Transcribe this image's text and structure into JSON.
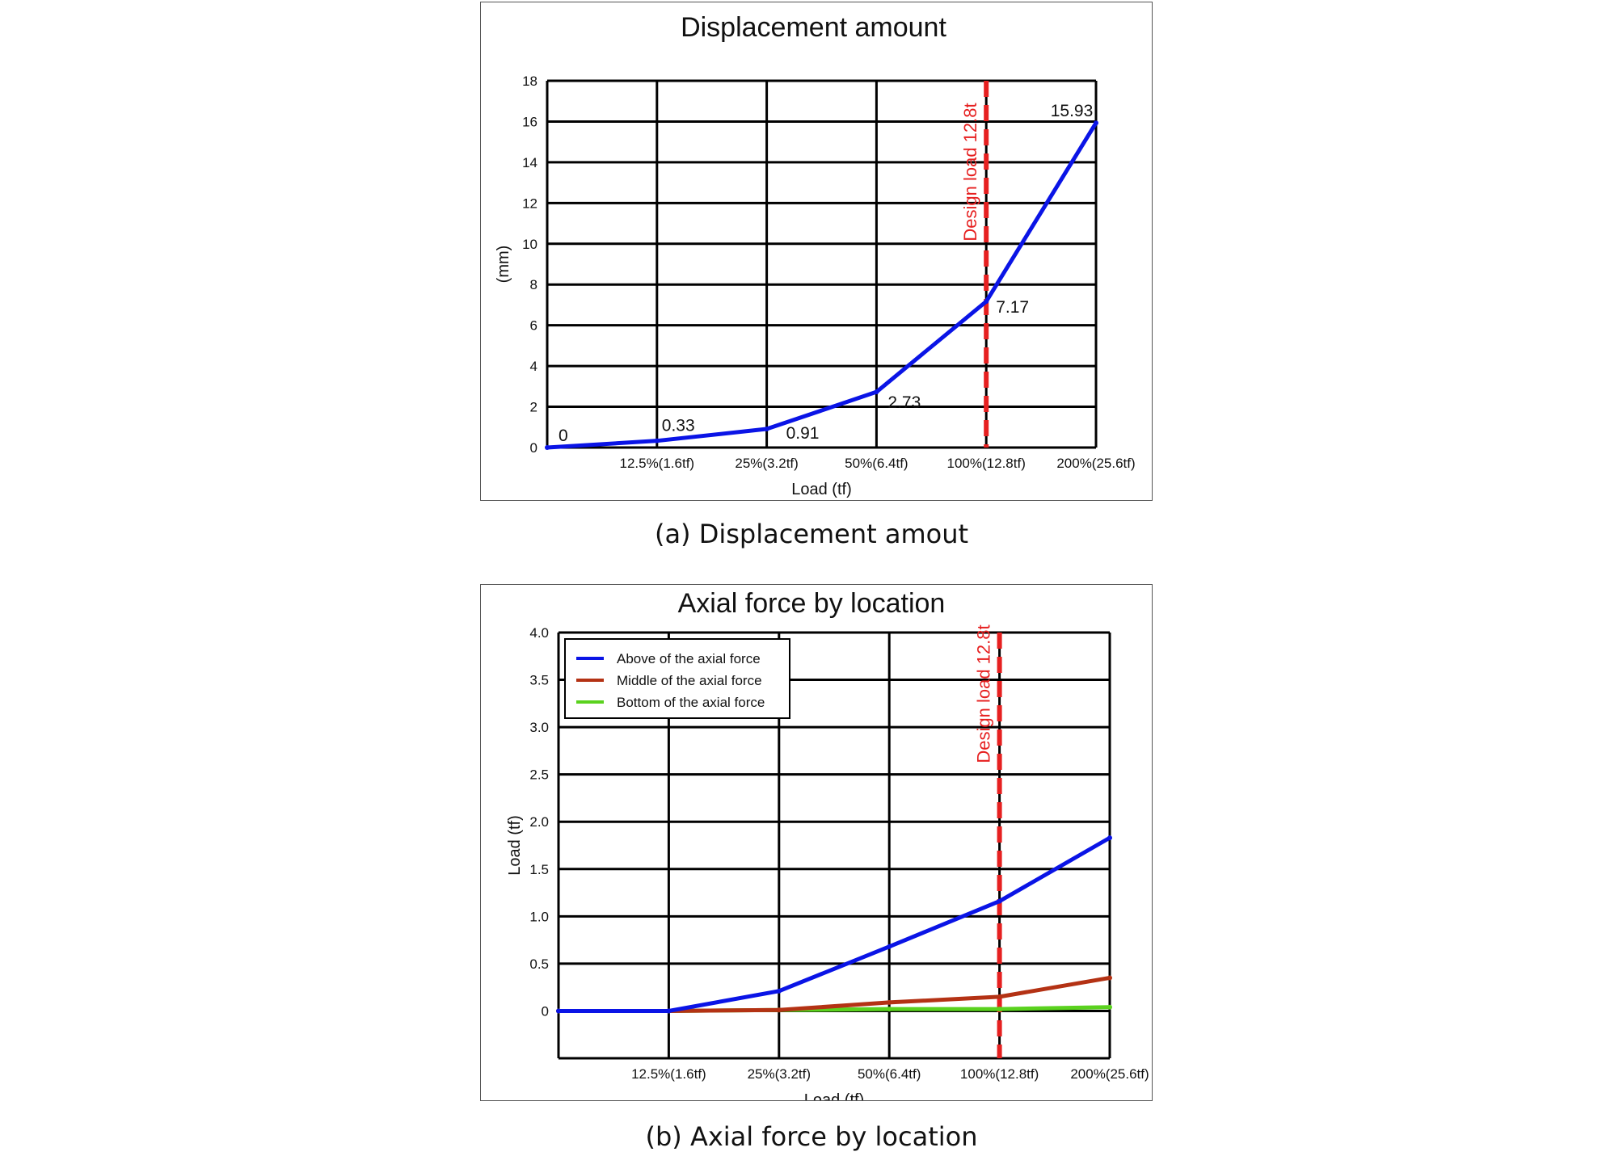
{
  "chart_data": [
    {
      "type": "line",
      "title": "Displacement amount",
      "xlabel": "Load (tf)",
      "ylabel": "(mm)",
      "categories": [
        "",
        "12.5%(1.6tf)",
        "25%(3.2tf)",
        "50%(6.4tf)",
        "100%(12.8tf)",
        "200%(25.6tf)"
      ],
      "ylim": [
        0,
        18
      ],
      "yticks": [
        "0",
        "2",
        "4",
        "6",
        "8",
        "10",
        "12",
        "14",
        "16",
        "18"
      ],
      "series": [
        {
          "values": [
            0,
            0.33,
            0.91,
            2.73,
            7.17,
            15.93
          ],
          "color": "#0a14e6"
        }
      ],
      "data_labels": [
        "0",
        "0.33",
        "0.91",
        "2.73",
        "7.17",
        "15.93"
      ],
      "annotation": {
        "text": "Design load 12.8t",
        "at_category": 4,
        "color": "#e62020"
      },
      "grid": true,
      "caption": "(a) Displacement amout"
    },
    {
      "type": "line",
      "title": "Axial force by location",
      "xlabel": "Load (tf)",
      "ylabel": "Load (tf)",
      "categories": [
        "",
        "12.5%(1.6tf)",
        "25%(3.2tf)",
        "50%(6.4tf)",
        "100%(12.8tf)",
        "200%(25.6tf)"
      ],
      "ylim": [
        -0.5,
        4.0
      ],
      "yticks": [
        "",
        "0",
        "0.5",
        "1.0",
        "1.5",
        "2.0",
        "2.5",
        "3.0",
        "3.5",
        "4.0"
      ],
      "series": [
        {
          "name": "Above of the axial force",
          "values": [
            0,
            0,
            0.21,
            0.68,
            1.16,
            1.83
          ],
          "color": "#0a14e6"
        },
        {
          "name": "Middle of the axial force",
          "values": [
            0,
            0,
            0.01,
            0.09,
            0.15,
            0.35
          ],
          "color": "#b43214"
        },
        {
          "name": "Bottom of the axial force",
          "values": [
            0,
            0,
            0.01,
            0.02,
            0.02,
            0.04
          ],
          "color": "#5ad21e"
        }
      ],
      "annotation": {
        "text": "Design load 12.8t",
        "at_category": 4,
        "color": "#e62020"
      },
      "legend": "top-left",
      "grid": true,
      "caption": "(b) Axial force by location"
    }
  ]
}
